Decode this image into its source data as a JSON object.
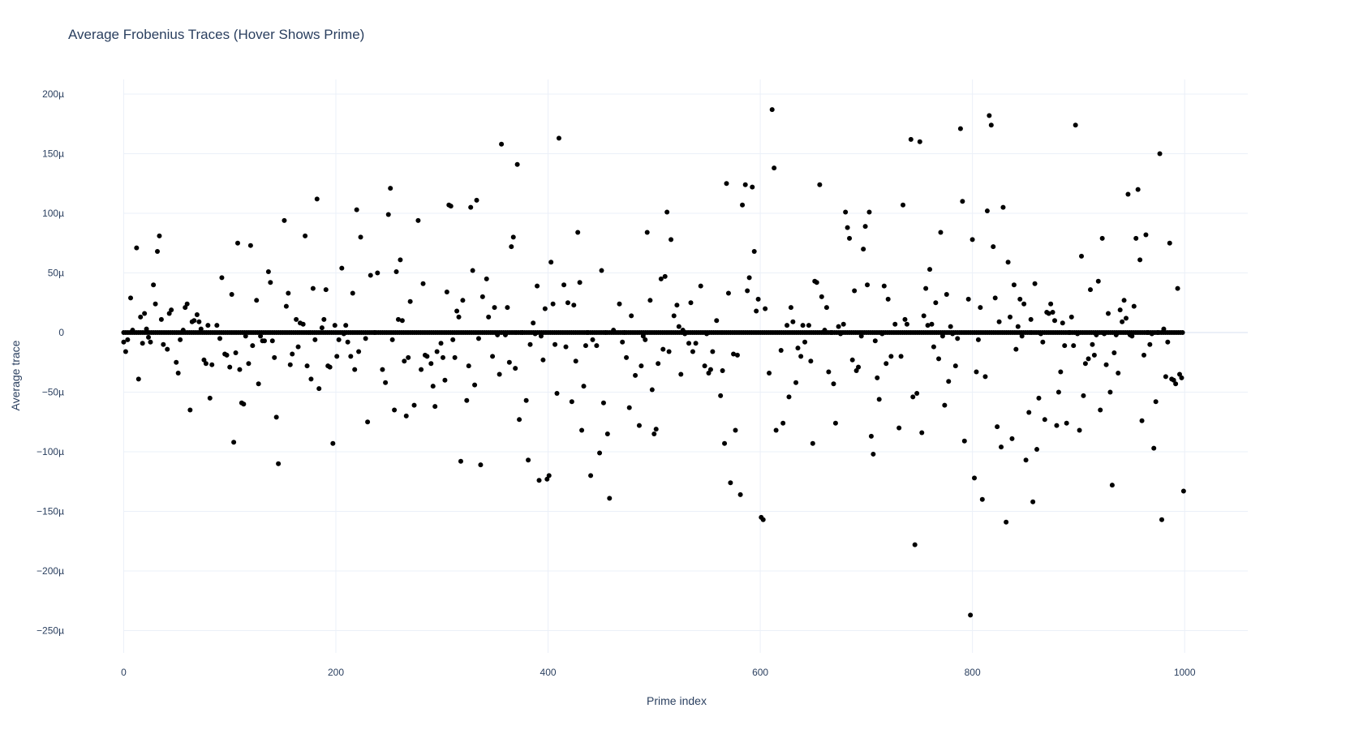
{
  "chart_data": {
    "type": "scatter",
    "title": "Average Frobenius Traces (Hover Shows Prime)",
    "xlabel": "Prime index",
    "ylabel": "Average trace",
    "xlim": [
      -20,
      1060
    ],
    "ylim": [
      -0.000265,
      0.000213
    ],
    "x_ticks": [
      0,
      200,
      400,
      600,
      800,
      1000
    ],
    "x_tick_labels": [
      "0",
      "200",
      "400",
      "600",
      "800",
      "1000"
    ],
    "y_ticks": [
      0.0002,
      0.00015,
      0.0001,
      5e-05,
      0,
      -5e-05,
      -0.0001,
      -0.00015,
      -0.0002,
      -0.00025
    ],
    "y_tick_labels": [
      "200µ",
      "150µ",
      "100µ",
      "50µ",
      "0",
      "−50µ",
      "−100µ",
      "−150µ",
      "−200µ",
      "−250µ"
    ],
    "grid": true,
    "marker_color": "#000000",
    "x_range_points": [
      0,
      999
    ],
    "baseline_y": 0,
    "points": [
      [
        3,
        -8
      ],
      [
        5,
        -16
      ],
      [
        7,
        -6
      ],
      [
        10,
        29
      ],
      [
        12,
        2
      ],
      [
        16,
        71
      ],
      [
        18,
        -39
      ],
      [
        20,
        13
      ],
      [
        22,
        -9
      ],
      [
        24,
        16
      ],
      [
        26,
        3
      ],
      [
        28,
        -4
      ],
      [
        30,
        -8
      ],
      [
        33,
        40
      ],
      [
        35,
        24
      ],
      [
        37,
        68
      ],
      [
        39,
        81
      ],
      [
        41,
        11
      ],
      [
        43,
        -10
      ],
      [
        47,
        -14
      ],
      [
        49,
        16
      ],
      [
        51,
        19
      ],
      [
        56,
        -25
      ],
      [
        58,
        -34
      ],
      [
        60,
        -6
      ],
      [
        63,
        2
      ],
      [
        65,
        21
      ],
      [
        67,
        24
      ],
      [
        70,
        -65
      ],
      [
        72,
        9
      ],
      [
        74,
        10
      ],
      [
        77,
        15
      ],
      [
        79,
        9
      ],
      [
        81,
        3
      ],
      [
        84,
        -23
      ],
      [
        86,
        -26
      ],
      [
        88,
        6
      ],
      [
        90,
        -55
      ],
      [
        92,
        -27
      ],
      [
        97,
        6
      ],
      [
        100,
        -5
      ],
      [
        102,
        46
      ],
      [
        105,
        -18
      ],
      [
        107,
        -19
      ],
      [
        110,
        -29
      ],
      [
        112,
        32
      ],
      [
        114,
        -92
      ],
      [
        116,
        -17
      ],
      [
        118,
        75
      ],
      [
        120,
        -31
      ],
      [
        122,
        -59
      ],
      [
        124,
        -60
      ],
      [
        126,
        -3
      ],
      [
        129,
        -26
      ],
      [
        131,
        73
      ],
      [
        133,
        -11
      ],
      [
        137,
        27
      ],
      [
        139,
        -43
      ],
      [
        141,
        -3
      ],
      [
        143,
        -7
      ],
      [
        145,
        -7
      ],
      [
        149,
        51
      ],
      [
        151,
        42
      ],
      [
        153,
        -7
      ],
      [
        155,
        -21
      ],
      [
        157,
        -71
      ],
      [
        159,
        -110
      ],
      [
        165,
        94
      ],
      [
        167,
        22
      ],
      [
        169,
        33
      ],
      [
        171,
        -27
      ],
      [
        173,
        -18
      ],
      [
        177,
        11
      ],
      [
        179,
        -12
      ],
      [
        181,
        8
      ],
      [
        184,
        7
      ],
      [
        186,
        81
      ],
      [
        188,
        -28
      ],
      [
        192,
        -39
      ],
      [
        194,
        37
      ],
      [
        196,
        -6
      ],
      [
        198,
        112
      ],
      [
        200,
        -47
      ],
      [
        203,
        4
      ],
      [
        205,
        11
      ],
      [
        207,
        36
      ],
      [
        209,
        -28
      ],
      [
        211,
        -29
      ],
      [
        214,
        -93
      ],
      [
        216,
        6
      ],
      [
        218,
        -20
      ],
      [
        220,
        -6
      ],
      [
        223,
        54
      ],
      [
        225,
        -1
      ],
      [
        227,
        6
      ],
      [
        229,
        -8
      ],
      [
        232,
        -20
      ],
      [
        234,
        33
      ],
      [
        236,
        -31
      ],
      [
        238,
        103
      ],
      [
        240,
        -16
      ],
      [
        242,
        80
      ],
      [
        247,
        -5
      ],
      [
        249,
        -75
      ],
      [
        252,
        48
      ],
      [
        256,
        0
      ],
      [
        259,
        50
      ],
      [
        264,
        -31
      ],
      [
        267,
        -42
      ],
      [
        270,
        99
      ],
      [
        272,
        121
      ],
      [
        274,
        -6
      ],
      [
        276,
        -65
      ],
      [
        278,
        51
      ],
      [
        280,
        11
      ],
      [
        282,
        61
      ],
      [
        284,
        10
      ],
      [
        286,
        -24
      ],
      [
        288,
        -70
      ],
      [
        290,
        -21
      ],
      [
        292,
        26
      ],
      [
        296,
        -61
      ],
      [
        300,
        94
      ],
      [
        303,
        -31
      ],
      [
        305,
        41
      ],
      [
        307,
        -19
      ],
      [
        309,
        -20
      ],
      [
        313,
        -26
      ],
      [
        315,
        -45
      ],
      [
        317,
        -62
      ],
      [
        319,
        -16
      ],
      [
        323,
        -9
      ],
      [
        325,
        -21
      ],
      [
        327,
        -40
      ],
      [
        329,
        34
      ],
      [
        331,
        107
      ],
      [
        333,
        106
      ],
      [
        335,
        -6
      ],
      [
        337,
        -21
      ],
      [
        339,
        18
      ],
      [
        341,
        13
      ],
      [
        343,
        -108
      ],
      [
        345,
        27
      ],
      [
        349,
        -57
      ],
      [
        351,
        -28
      ],
      [
        353,
        105
      ],
      [
        355,
        52
      ],
      [
        357,
        -44
      ],
      [
        359,
        111
      ],
      [
        361,
        -5
      ],
      [
        363,
        -111
      ],
      [
        365,
        30
      ],
      [
        369,
        45
      ],
      [
        371,
        13
      ],
      [
        375,
        -20
      ],
      [
        377,
        21
      ],
      [
        380,
        -2
      ],
      [
        382,
        -35
      ],
      [
        384,
        158
      ],
      [
        388,
        -2
      ],
      [
        390,
        21
      ],
      [
        392,
        -25
      ],
      [
        394,
        72
      ],
      [
        396,
        80
      ],
      [
        398,
        -30
      ],
      [
        400,
        141
      ],
      [
        402,
        -73
      ],
      [
        405,
        0
      ],
      [
        409,
        -57
      ],
      [
        411,
        -107
      ],
      [
        413,
        -10
      ],
      [
        416,
        8
      ],
      [
        418,
        -1
      ],
      [
        420,
        39
      ],
      [
        422,
        -124
      ],
      [
        424,
        -3
      ],
      [
        426,
        -23
      ],
      [
        428,
        20
      ],
      [
        430,
        -123
      ],
      [
        432,
        -120
      ],
      [
        434,
        59
      ],
      [
        436,
        24
      ],
      [
        438,
        -10
      ],
      [
        440,
        -51
      ],
      [
        442,
        163
      ],
      [
        447,
        40
      ],
      [
        449,
        -12
      ],
      [
        451,
        25
      ],
      [
        455,
        -58
      ],
      [
        457,
        23
      ],
      [
        459,
        -24
      ],
      [
        461,
        84
      ],
      [
        463,
        42
      ],
      [
        465,
        -82
      ],
      [
        467,
        -45
      ],
      [
        469,
        -11
      ],
      [
        471,
        0
      ],
      [
        474,
        -120
      ],
      [
        476,
        -6
      ],
      [
        480,
        -11
      ],
      [
        483,
        -101
      ],
      [
        485,
        52
      ],
      [
        487,
        -59
      ],
      [
        489,
        0
      ],
      [
        491,
        -85
      ],
      [
        493,
        -139
      ],
      [
        497,
        2
      ],
      [
        503,
        24
      ],
      [
        506,
        -8
      ],
      [
        508,
        0
      ],
      [
        510,
        -21
      ],
      [
        513,
        -63
      ],
      [
        515,
        14
      ],
      [
        519,
        -36
      ],
      [
        523,
        -78
      ],
      [
        525,
        -28
      ],
      [
        527,
        -3
      ],
      [
        529,
        -6
      ],
      [
        531,
        84
      ],
      [
        534,
        27
      ],
      [
        536,
        -48
      ],
      [
        538,
        -85
      ],
      [
        540,
        -81
      ],
      [
        542,
        -26
      ],
      [
        545,
        45
      ],
      [
        547,
        -14
      ],
      [
        549,
        47
      ],
      [
        551,
        101
      ],
      [
        553,
        -16
      ],
      [
        555,
        78
      ],
      [
        558,
        14
      ],
      [
        561,
        23
      ],
      [
        563,
        5
      ],
      [
        565,
        -35
      ],
      [
        567,
        2
      ],
      [
        569,
        -1
      ],
      [
        573,
        -9
      ],
      [
        575,
        25
      ],
      [
        577,
        -16
      ],
      [
        580,
        -9
      ],
      [
        585,
        39
      ],
      [
        589,
        -28
      ],
      [
        591,
        -1
      ],
      [
        593,
        -34
      ],
      [
        595,
        -31
      ],
      [
        597,
        -16
      ],
      [
        601,
        10
      ],
      [
        605,
        -53
      ],
      [
        607,
        -32
      ],
      [
        609,
        -93
      ],
      [
        611,
        125
      ],
      [
        613,
        33
      ],
      [
        615,
        -126
      ],
      [
        618,
        -18
      ],
      [
        620,
        -82
      ],
      [
        622,
        -19
      ],
      [
        625,
        -136
      ],
      [
        627,
        107
      ],
      [
        630,
        124
      ],
      [
        632,
        35
      ],
      [
        634,
        46
      ],
      [
        637,
        122
      ],
      [
        639,
        68
      ],
      [
        641,
        18
      ],
      [
        643,
        28
      ],
      [
        646,
        -155
      ],
      [
        648,
        -157
      ],
      [
        650,
        20
      ],
      [
        654,
        -34
      ],
      [
        657,
        187
      ],
      [
        659,
        138
      ],
      [
        661,
        -82
      ],
      [
        666,
        -15
      ],
      [
        668,
        -76
      ],
      [
        672,
        6
      ],
      [
        674,
        -54
      ],
      [
        676,
        21
      ],
      [
        678,
        9
      ],
      [
        681,
        -42
      ],
      [
        683,
        -13
      ],
      [
        686,
        -20
      ],
      [
        688,
        6
      ],
      [
        690,
        -8
      ],
      [
        694,
        6
      ],
      [
        696,
        -24
      ],
      [
        698,
        -93
      ],
      [
        700,
        43
      ],
      [
        702,
        42
      ],
      [
        705,
        124
      ],
      [
        707,
        30
      ],
      [
        710,
        2
      ],
      [
        712,
        21
      ],
      [
        714,
        -33
      ],
      [
        717,
        0
      ],
      [
        719,
        -43
      ],
      [
        721,
        -76
      ],
      [
        724,
        5
      ],
      [
        726,
        -1
      ],
      [
        729,
        7
      ],
      [
        731,
        101
      ],
      [
        733,
        88
      ],
      [
        735,
        79
      ],
      [
        738,
        -23
      ],
      [
        740,
        35
      ],
      [
        742,
        -32
      ],
      [
        744,
        -29
      ],
      [
        747,
        -3
      ],
      [
        749,
        70
      ],
      [
        751,
        89
      ],
      [
        753,
        40
      ],
      [
        755,
        101
      ],
      [
        757,
        -87
      ],
      [
        759,
        -102
      ],
      [
        761,
        -7
      ],
      [
        763,
        -38
      ],
      [
        765,
        -56
      ],
      [
        768,
        -1
      ],
      [
        770,
        39
      ],
      [
        772,
        -26
      ],
      [
        774,
        28
      ],
      [
        777,
        -20
      ],
      [
        781,
        7
      ],
      [
        785,
        -80
      ],
      [
        787,
        -20
      ],
      [
        789,
        107
      ],
      [
        791,
        11
      ],
      [
        793,
        7
      ],
      [
        797,
        162
      ],
      [
        799,
        -54
      ],
      [
        801,
        -178
      ],
      [
        803,
        -51
      ],
      [
        806,
        160
      ],
      [
        808,
        -84
      ],
      [
        810,
        14
      ],
      [
        812,
        37
      ],
      [
        814,
        6
      ],
      [
        816,
        53
      ],
      [
        818,
        7
      ],
      [
        820,
        -12
      ],
      [
        822,
        25
      ],
      [
        825,
        -22
      ],
      [
        827,
        84
      ],
      [
        829,
        -3
      ],
      [
        831,
        -61
      ],
      [
        833,
        32
      ],
      [
        835,
        -41
      ],
      [
        837,
        5
      ],
      [
        839,
        -1
      ],
      [
        842,
        -28
      ],
      [
        844,
        -5
      ],
      [
        847,
        171
      ],
      [
        849,
        110
      ],
      [
        851,
        -91
      ],
      [
        855,
        28
      ],
      [
        857,
        -237
      ],
      [
        859,
        78
      ],
      [
        861,
        -122
      ],
      [
        863,
        -33
      ],
      [
        865,
        -6
      ],
      [
        867,
        21
      ],
      [
        869,
        -140
      ],
      [
        872,
        -37
      ],
      [
        874,
        102
      ],
      [
        876,
        182
      ],
      [
        878,
        174
      ],
      [
        880,
        72
      ],
      [
        882,
        29
      ],
      [
        884,
        -79
      ],
      [
        886,
        9
      ],
      [
        888,
        -96
      ],
      [
        890,
        105
      ],
      [
        893,
        -159
      ],
      [
        895,
        59
      ],
      [
        897,
        13
      ],
      [
        899,
        -89
      ],
      [
        901,
        40
      ],
      [
        903,
        -14
      ],
      [
        905,
        5
      ],
      [
        907,
        28
      ],
      [
        909,
        -3
      ],
      [
        911,
        24
      ],
      [
        913,
        -107
      ],
      [
        916,
        -67
      ],
      [
        918,
        11
      ],
      [
        920,
        -142
      ],
      [
        922,
        41
      ],
      [
        924,
        -98
      ],
      [
        926,
        -55
      ],
      [
        928,
        -1
      ],
      [
        930,
        -8
      ],
      [
        932,
        -73
      ],
      [
        934,
        17
      ],
      [
        936,
        16
      ],
      [
        938,
        24
      ],
      [
        940,
        17
      ],
      [
        942,
        10
      ],
      [
        944,
        -78
      ],
      [
        946,
        -50
      ],
      [
        948,
        -33
      ],
      [
        950,
        8
      ],
      [
        952,
        -11
      ],
      [
        954,
        -76
      ],
      [
        957,
        0
      ],
      [
        959,
        13
      ],
      [
        961,
        -11
      ],
      [
        963,
        174
      ],
      [
        965,
        -1
      ],
      [
        967,
        -82
      ],
      [
        969,
        64
      ],
      [
        971,
        -53
      ],
      [
        973,
        -26
      ],
      [
        976,
        -22
      ],
      [
        978,
        36
      ],
      [
        980,
        -10
      ],
      [
        982,
        -19
      ],
      [
        984,
        -2
      ],
      [
        986,
        43
      ],
      [
        988,
        -65
      ],
      [
        990,
        79
      ],
      [
        992,
        -1
      ],
      [
        994,
        -27
      ],
      [
        996,
        16
      ],
      [
        998,
        -50
      ],
      [
        1000,
        -128
      ],
      [
        1002,
        -17
      ],
      [
        1004,
        -2
      ],
      [
        1006,
        -34
      ],
      [
        1008,
        19
      ],
      [
        1010,
        9
      ],
      [
        1012,
        27
      ],
      [
        1014,
        12
      ],
      [
        1016,
        116
      ],
      [
        1018,
        -2
      ],
      [
        1020,
        -3
      ],
      [
        1022,
        22
      ],
      [
        1024,
        79
      ],
      [
        1026,
        120
      ],
      [
        1028,
        61
      ],
      [
        1030,
        -74
      ],
      [
        1032,
        -19
      ],
      [
        1034,
        82
      ],
      [
        1036,
        0
      ],
      [
        1038,
        -10
      ],
      [
        1040,
        -1
      ],
      [
        1042,
        -97
      ],
      [
        1044,
        -58
      ],
      [
        1046,
        0
      ],
      [
        1048,
        150
      ],
      [
        1050,
        -157
      ],
      [
        1052,
        3
      ],
      [
        1054,
        -37
      ],
      [
        1056,
        -8
      ],
      [
        1058,
        75
      ],
      [
        1060,
        -39
      ],
      [
        1062,
        -40
      ],
      [
        1064,
        -43
      ],
      [
        1066,
        37
      ],
      [
        1068,
        -35
      ],
      [
        1070,
        -38
      ],
      [
        1072,
        -133
      ]
    ]
  }
}
